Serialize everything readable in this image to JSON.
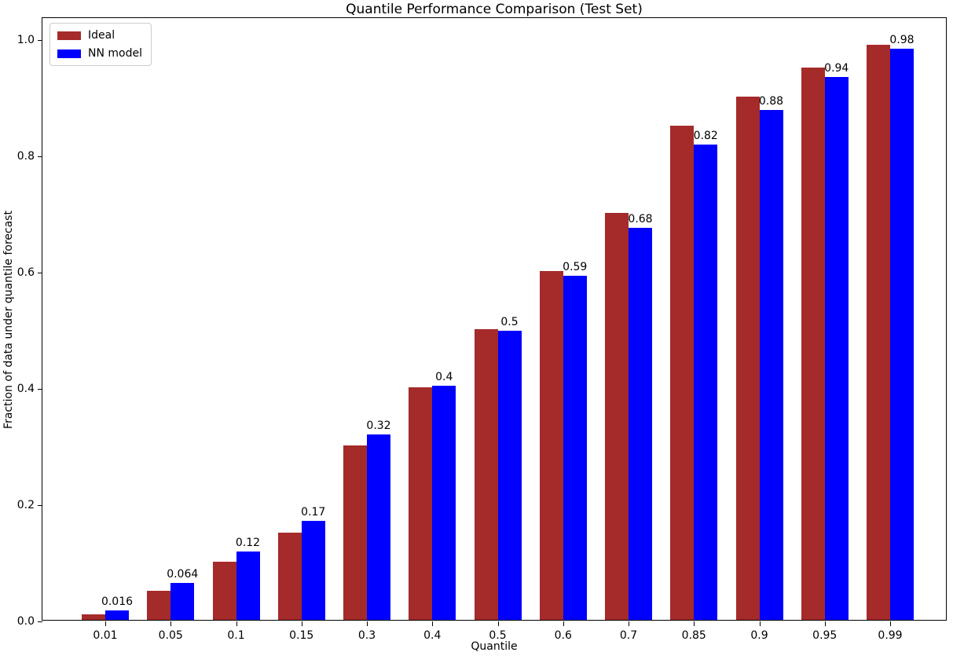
{
  "chart_data": {
    "type": "bar",
    "title": "Quantile Performance Comparison (Test Set)",
    "xlabel": "Quantile",
    "ylabel": "Fraction of data under quantile forecast",
    "categories": [
      "0.01",
      "0.05",
      "0.1",
      "0.15",
      "0.3",
      "0.4",
      "0.5",
      "0.6",
      "0.7",
      "0.85",
      "0.9",
      "0.95",
      "0.99"
    ],
    "series": [
      {
        "name": "Ideal",
        "color": "#A52A2A",
        "values": [
          0.01,
          0.05,
          0.1,
          0.15,
          0.3,
          0.4,
          0.5,
          0.6,
          0.7,
          0.85,
          0.9,
          0.95,
          0.99
        ]
      },
      {
        "name": "NN model",
        "color": "#0000FF",
        "values": [
          0.016,
          0.064,
          0.118,
          0.171,
          0.319,
          0.403,
          0.497,
          0.592,
          0.675,
          0.818,
          0.878,
          0.935,
          0.983
        ]
      }
    ],
    "bar_labels": [
      "0.016",
      "0.064",
      "0.12",
      "0.17",
      "0.32",
      "0.4",
      "0.5",
      "0.59",
      "0.68",
      "0.82",
      "0.88",
      "0.94",
      "0.98"
    ],
    "ytick_labels": [
      "0.0",
      "0.2",
      "0.4",
      "0.6",
      "0.8",
      "1.0"
    ],
    "ylim": [
      0,
      1.0385
    ],
    "legend_position": "upper left",
    "grid": false,
    "axis_color": "#000000",
    "text_color": "#000000"
  }
}
